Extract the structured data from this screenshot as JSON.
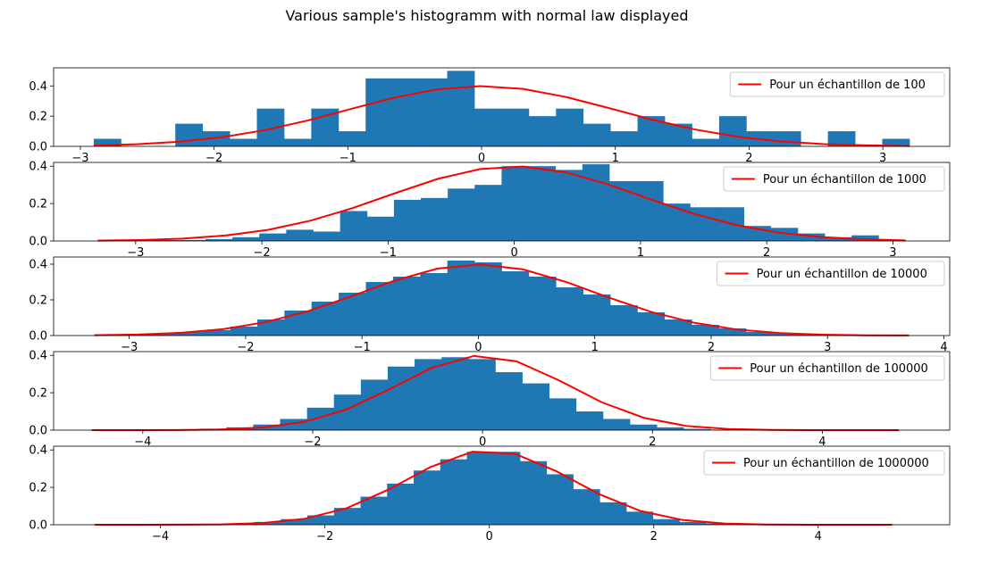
{
  "figure": {
    "title": "Various sample's histogramm with normal law displayed"
  },
  "chart_data": [
    {
      "type": "bar",
      "subtype": "histogram",
      "sample_size": 100,
      "bins": {
        "x_start": -2.9,
        "bin_width": 0.2033,
        "values": [
          0.05,
          0,
          0,
          0.15,
          0.1,
          0.05,
          0.25,
          0.05,
          0.25,
          0.1,
          0.45,
          0.45,
          0.45,
          0.5,
          0.25,
          0.25,
          0.2,
          0.25,
          0.15,
          0.1,
          0.2,
          0.15,
          0.05,
          0.2,
          0.1,
          0.1,
          0,
          0.1,
          0,
          0.05
        ]
      },
      "line": {
        "name": "Pour un échantillon de 100",
        "x_range": [
          -2.9,
          3.2
        ],
        "mean": 0,
        "std": 1,
        "points": 20
      },
      "xlim": [
        -3.2,
        3.5
      ],
      "ylim": [
        0,
        0.52
      ],
      "xticks": [
        -3,
        -2,
        -1,
        0,
        1,
        2,
        3
      ],
      "yticks": [
        0.0,
        0.2,
        0.4
      ],
      "legend": "top-right",
      "colors": {
        "bars": "#1f77b4",
        "line": "#ff0000"
      }
    },
    {
      "type": "bar",
      "subtype": "histogram",
      "sample_size": 1000,
      "bins": {
        "x_start": -3.3,
        "bin_width": 0.2133,
        "values": [
          0,
          0,
          0.005,
          0.005,
          0.01,
          0.02,
          0.04,
          0.06,
          0.05,
          0.16,
          0.13,
          0.22,
          0.23,
          0.28,
          0.3,
          0.4,
          0.4,
          0.38,
          0.41,
          0.32,
          0.32,
          0.2,
          0.18,
          0.18,
          0.08,
          0.07,
          0.04,
          0.02,
          0.03,
          0.005
        ]
      },
      "line": {
        "name": "Pour un échantillon de 1000",
        "x_range": [
          -3.3,
          3.1
        ],
        "mean": 0,
        "std": 1,
        "points": 20
      },
      "xlim": [
        -3.65,
        3.45
      ],
      "ylim": [
        0,
        0.42
      ],
      "xticks": [
        -3,
        -2,
        -1,
        0,
        1,
        2,
        3
      ],
      "yticks": [
        0.0,
        0.2,
        0.4
      ],
      "legend": "top-right",
      "colors": {
        "bars": "#1f77b4",
        "line": "#ff0000"
      }
    },
    {
      "type": "bar",
      "subtype": "histogram",
      "sample_size": 10000,
      "bins": {
        "x_start": -3.3,
        "bin_width": 0.2333,
        "values": [
          0.003,
          0.006,
          0.01,
          0.02,
          0.03,
          0.05,
          0.09,
          0.14,
          0.19,
          0.24,
          0.3,
          0.33,
          0.35,
          0.42,
          0.41,
          0.36,
          0.33,
          0.27,
          0.23,
          0.17,
          0.13,
          0.09,
          0.06,
          0.04,
          0.02,
          0.012,
          0.006,
          0.003,
          0.002,
          0.001
        ]
      },
      "line": {
        "name": "Pour un échantillon de 10000",
        "x_range": [
          -3.3,
          3.7
        ],
        "mean": 0,
        "std": 1,
        "points": 20
      },
      "xlim": [
        -3.65,
        4.05
      ],
      "ylim": [
        0,
        0.44
      ],
      "xticks": [
        -3,
        -2,
        -1,
        0,
        1,
        2,
        3,
        4
      ],
      "yticks": [
        0.0,
        0.2,
        0.4
      ],
      "legend": "top-right",
      "colors": {
        "bars": "#1f77b4",
        "line": "#ff0000"
      }
    },
    {
      "type": "bar",
      "subtype": "histogram",
      "sample_size": 100000,
      "bins": {
        "x_start": -4.6,
        "bin_width": 0.3167,
        "values": [
          0.0005,
          0.001,
          0.002,
          0.004,
          0.008,
          0.015,
          0.03,
          0.06,
          0.12,
          0.19,
          0.27,
          0.34,
          0.38,
          0.39,
          0.38,
          0.31,
          0.25,
          0.17,
          0.1,
          0.06,
          0.03,
          0.015,
          0.007,
          0.003,
          0.001,
          0.0005,
          0.0002,
          0.0001,
          0.0001,
          0.0001
        ]
      },
      "line": {
        "name": "Pour un échantillon de 100000",
        "x_range": [
          -4.6,
          4.9
        ],
        "mean": 0,
        "std": 1,
        "points": 20
      },
      "xlim": [
        -5.05,
        5.5
      ],
      "ylim": [
        0,
        0.42
      ],
      "xticks": [
        -4,
        -2,
        0,
        2,
        4
      ],
      "yticks": [
        0.0,
        0.2,
        0.4
      ],
      "legend": "top-right",
      "colors": {
        "bars": "#1f77b4",
        "line": "#ff0000"
      }
    },
    {
      "type": "bar",
      "subtype": "histogram",
      "sample_size": 1000000,
      "bins": {
        "x_start": -4.8,
        "bin_width": 0.3233,
        "values": [
          0.0001,
          0.0002,
          0.0005,
          0.001,
          0.003,
          0.007,
          0.015,
          0.03,
          0.05,
          0.09,
          0.15,
          0.22,
          0.29,
          0.35,
          0.39,
          0.39,
          0.34,
          0.27,
          0.19,
          0.12,
          0.07,
          0.03,
          0.015,
          0.007,
          0.003,
          0.0015,
          0.0006,
          0.0002,
          0.0001,
          0.0001
        ]
      },
      "line": {
        "name": "Pour un échantillon de 1000000",
        "x_range": [
          -4.8,
          4.9
        ],
        "mean": 0,
        "std": 1,
        "points": 20
      },
      "xlim": [
        -5.3,
        5.6
      ],
      "ylim": [
        0,
        0.42
      ],
      "xticks": [
        -4,
        -2,
        0,
        2,
        4
      ],
      "yticks": [
        0.0,
        0.2,
        0.4
      ],
      "legend": "top-right",
      "colors": {
        "bars": "#1f77b4",
        "line": "#ff0000"
      }
    }
  ]
}
